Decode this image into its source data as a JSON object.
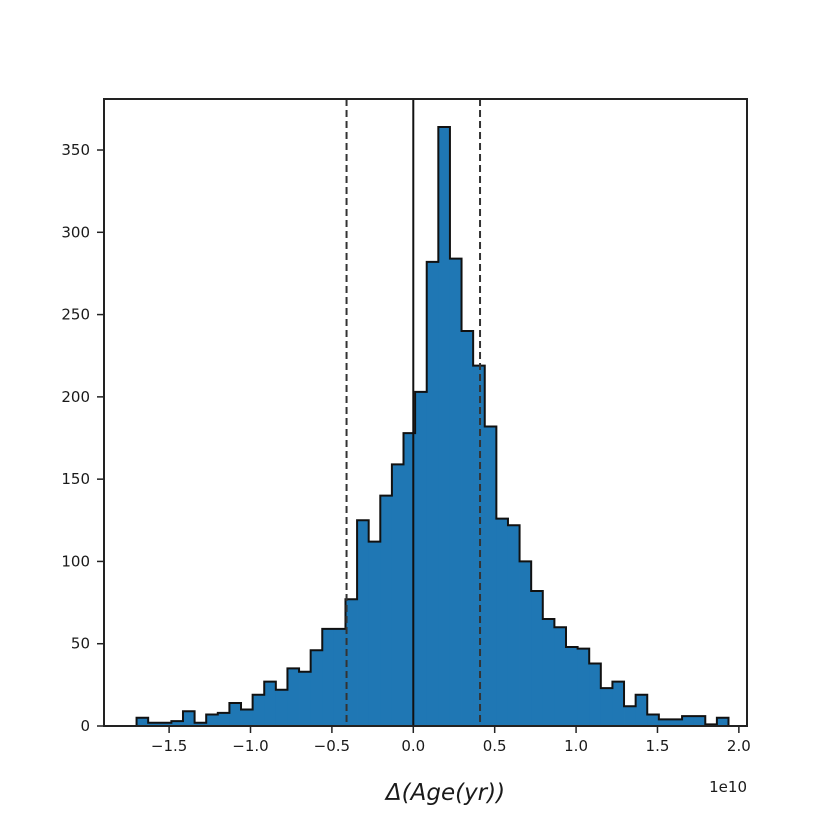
{
  "chart_data": {
    "type": "bar",
    "xlabel": "Δ(Age(yr))",
    "x_offset_label": "1e10",
    "bin_width": 0.0713,
    "x_ticks": [
      -1.5,
      -1.0,
      -0.5,
      0.0,
      0.5,
      1.0,
      1.5,
      2.0
    ],
    "x_tick_labels": [
      "−1.5",
      "−1.0",
      "−0.5",
      "0.0",
      "0.5",
      "1.0",
      "1.5",
      "2.0"
    ],
    "xlim": [
      -1.9,
      2.05
    ],
    "y_ticks": [
      0,
      50,
      100,
      150,
      200,
      250,
      300,
      350
    ],
    "y_tick_labels": [
      "0",
      "50",
      "100",
      "150",
      "200",
      "250",
      "300",
      "350"
    ],
    "ylim": [
      0,
      381
    ],
    "bin_start": [
      -1.7,
      -1.6287,
      -1.5574,
      -1.4861,
      -1.4148,
      -1.3435,
      -1.2722,
      -1.2009,
      -1.1296,
      -1.0583,
      -0.987,
      -0.9157,
      -0.8444,
      -0.7731,
      -0.7018,
      -0.6305,
      -0.5592,
      -0.4879,
      -0.4166,
      -0.3453,
      -0.274,
      -0.2027,
      -0.1314,
      -0.0601,
      0.0112,
      0.0825,
      0.1538,
      0.2251,
      0.2964,
      0.3677,
      0.439,
      0.5103,
      0.5816,
      0.6529,
      0.7242,
      0.7955,
      0.8668,
      0.9381,
      1.0094,
      1.0807,
      1.152,
      1.2233,
      1.2946,
      1.3659,
      1.4372,
      1.5085,
      1.5798,
      1.6511,
      1.7224,
      1.7937,
      1.865
    ],
    "counts": [
      5,
      2,
      2,
      3,
      9,
      2,
      7,
      8,
      14,
      10,
      19,
      27,
      22,
      35,
      33,
      46,
      59,
      59,
      77,
      125,
      112,
      140,
      159,
      178,
      203,
      282,
      364,
      284,
      240,
      219,
      182,
      126,
      122,
      100,
      82,
      65,
      60,
      48,
      47,
      38,
      23,
      27,
      12,
      19,
      7,
      4,
      4,
      6,
      6,
      1,
      5
    ],
    "vlines": [
      {
        "x": 0.0,
        "style": "solid"
      },
      {
        "x": -0.41,
        "style": "dashed"
      },
      {
        "x": 0.41,
        "style": "dashed"
      }
    ],
    "bar_color": "#1f77b4",
    "edge_color": "#111111",
    "grid": false,
    "legend": "none"
  }
}
